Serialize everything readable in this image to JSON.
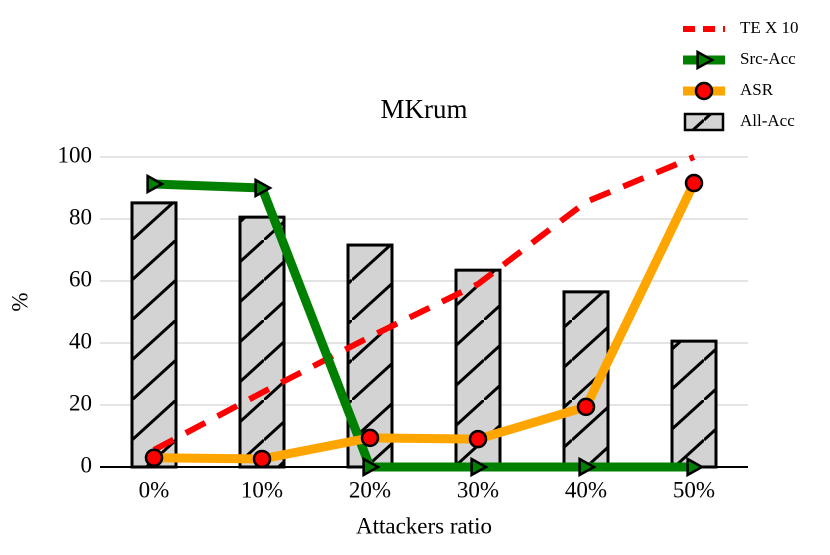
{
  "chart_data": {
    "type": "combo",
    "title": "MKrum",
    "x_label": "Attackers ratio",
    "y_label": "%",
    "categories": [
      "0%",
      "10%",
      "20%",
      "30%",
      "40%",
      "50%"
    ],
    "ylim": [
      0,
      100
    ],
    "yticks": [
      0,
      20,
      40,
      60,
      80,
      100
    ],
    "grid": true,
    "legend": "top-right",
    "series": [
      {
        "name": "TE X 10",
        "type": "line",
        "line_style": "dashed",
        "color": "#ff0000",
        "values": [
          5.5,
          24,
          42,
          59,
          85.5,
          100
        ]
      },
      {
        "name": "Src-Acc",
        "type": "line",
        "marker": "triangle",
        "color": "#008000",
        "values": [
          91.3,
          90,
          0,
          0,
          0,
          0
        ]
      },
      {
        "name": "ASR",
        "type": "line",
        "marker": "circle",
        "color": "#ffa500",
        "marker_color": "#ff0000",
        "values": [
          3,
          2.6,
          9.4,
          9,
          19.4,
          91.6
        ]
      },
      {
        "name": "All-Acc",
        "type": "bar",
        "hatch": true,
        "color": "#d3d3d3",
        "values": [
          85.2,
          80.6,
          71.6,
          63.5,
          56.5,
          40.6
        ]
      }
    ]
  }
}
